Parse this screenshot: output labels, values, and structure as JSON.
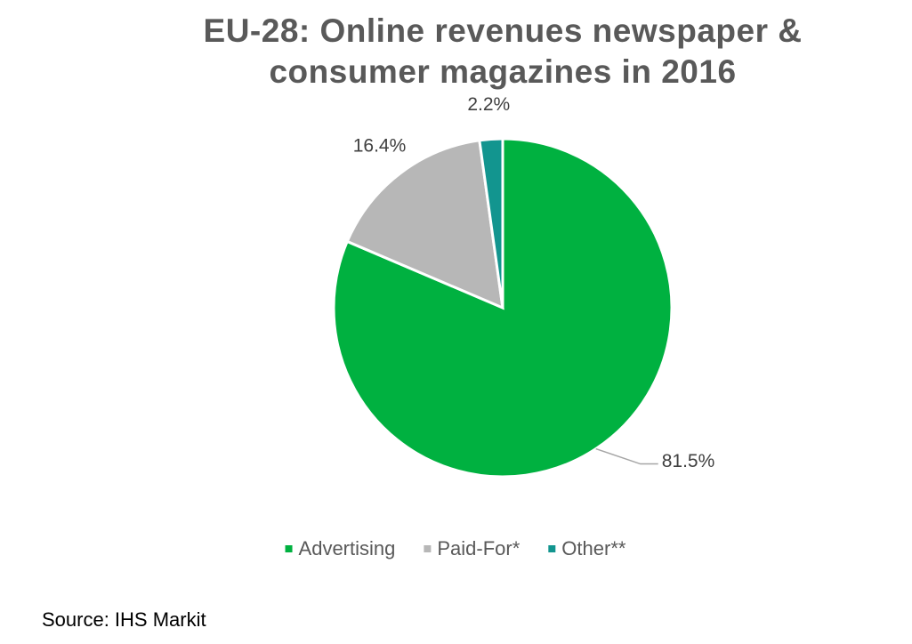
{
  "chart_data": {
    "type": "pie",
    "title": "EU-28: Online revenues newspaper & consumer magazines in 2016",
    "series": [
      {
        "name": "Advertising",
        "color": "#00b140",
        "values": [
          81.5
        ],
        "value_labels": [
          "81.5%"
        ]
      },
      {
        "name": "Paid-For*",
        "color": "#b7b7b7",
        "values": [
          16.4
        ],
        "value_labels": [
          "16.4%"
        ]
      },
      {
        "name": "Other**",
        "color": "#12958f",
        "values": [
          2.2
        ],
        "value_labels": [
          "2.2%"
        ]
      }
    ],
    "legend": "bottom",
    "source": "Source: IHS Markit"
  }
}
